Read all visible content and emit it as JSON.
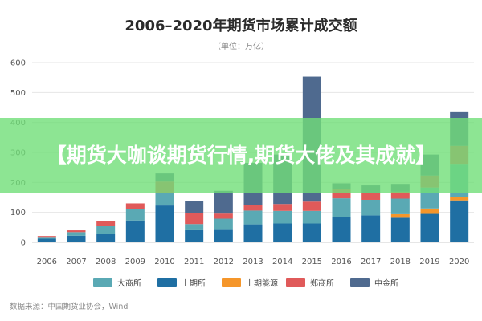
{
  "chart_data": {
    "type": "bar",
    "stacked": true,
    "title": "2006–2020年期货市场累计成交额",
    "subtitle": "（单位：万亿）",
    "categories": [
      "2006",
      "2007",
      "2008",
      "2009",
      "2010",
      "2011",
      "2012",
      "2013",
      "2014",
      "2015",
      "2016",
      "2017",
      "2018",
      "2019",
      "2020"
    ],
    "ylim": [
      0,
      600
    ],
    "yticks": [
      "0",
      "100",
      "200",
      "300",
      "400",
      "500",
      "600"
    ],
    "grid": true,
    "legend_position": "bottom",
    "series": [
      {
        "name": "上期所",
        "color": "#1f6fa3",
        "values": [
          12,
          22,
          28,
          73,
          123,
          43,
          44,
          60,
          63,
          63,
          85,
          90,
          82,
          95,
          140
        ]
      },
      {
        "name": "上期能源",
        "color": "#f5962a",
        "values": [
          0,
          0,
          0,
          0,
          0,
          0,
          0,
          0,
          0,
          0,
          0,
          0,
          12,
          18,
          12
        ]
      },
      {
        "name": "大商所",
        "color": "#5aa9b4",
        "values": [
          6,
          12,
          28,
          37,
          42,
          18,
          35,
          46,
          42,
          42,
          62,
          52,
          52,
          70,
          110
        ]
      },
      {
        "name": "郑商所",
        "color": "#e05a5a",
        "values": [
          3,
          6,
          14,
          20,
          38,
          36,
          17,
          19,
          23,
          31,
          32,
          23,
          23,
          40,
          60
        ]
      },
      {
        "name": "中金所",
        "color": "#4f6a8f",
        "values": [
          0,
          0,
          0,
          0,
          27,
          40,
          76,
          140,
          165,
          417,
          18,
          25,
          26,
          70,
          115
        ]
      }
    ],
    "legend_order": [
      "大商所",
      "上期所",
      "上期能源",
      "郑商所",
      "中金所"
    ]
  },
  "source": "数据来源：中国期货业协会，Wind",
  "banner": {
    "text": "【期货大咖谈期货行情,期货大佬及其成就】"
  },
  "colors": {
    "banner_bg": "#70de78",
    "grid": "#e6e6e6",
    "axis": "#cccccc"
  }
}
